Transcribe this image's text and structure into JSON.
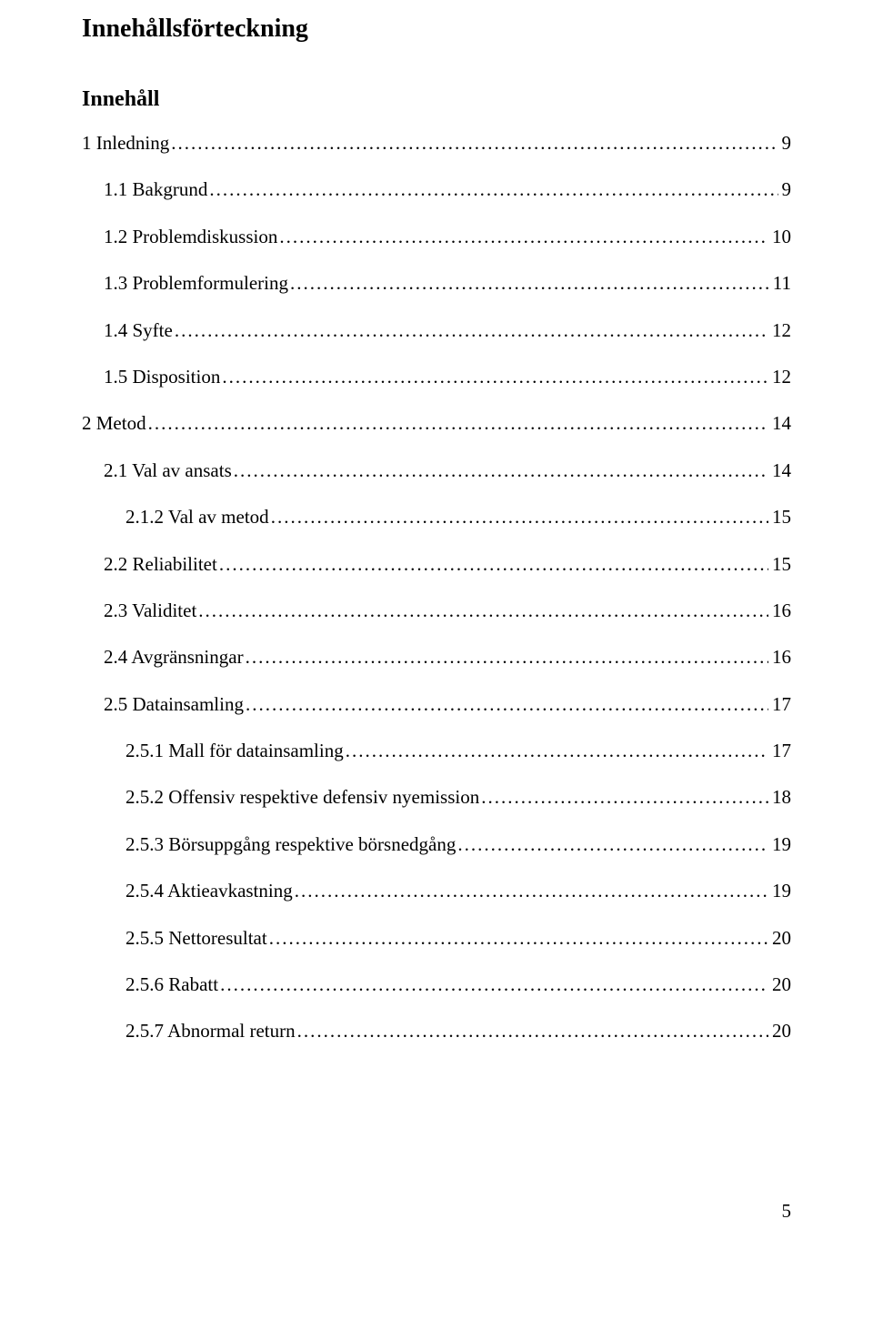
{
  "heading": "Innehållsförteckning",
  "subheading": "Innehåll",
  "leader_char": ".",
  "page_number": "5",
  "toc": [
    {
      "label": "1 Inledning",
      "page": "9",
      "indent": 0
    },
    {
      "label": "1.1 Bakgrund",
      "page": "9",
      "indent": 1
    },
    {
      "label": "1.2 Problemdiskussion",
      "page": "10",
      "indent": 1
    },
    {
      "label": "1.3 Problemformulering",
      "page": "11",
      "indent": 1
    },
    {
      "label": "1.4 Syfte",
      "page": "12",
      "indent": 1
    },
    {
      "label": "1.5 Disposition",
      "page": "12",
      "indent": 1
    },
    {
      "label": "2 Metod",
      "page": "14",
      "indent": 0
    },
    {
      "label": "2.1 Val av ansats",
      "page": "14",
      "indent": 1
    },
    {
      "label": "2.1.2 Val av metod",
      "page": "15",
      "indent": 2
    },
    {
      "label": "2.2 Reliabilitet",
      "page": "15",
      "indent": 1
    },
    {
      "label": "2.3 Validitet",
      "page": "16",
      "indent": 1
    },
    {
      "label": "2.4 Avgränsningar",
      "page": "16",
      "indent": 1
    },
    {
      "label": "2.5 Datainsamling",
      "page": "17",
      "indent": 1
    },
    {
      "label": "2.5.1 Mall för datainsamling",
      "page": "17",
      "indent": 2
    },
    {
      "label": "2.5.2 Offensiv respektive defensiv nyemission",
      "page": "18",
      "indent": 2
    },
    {
      "label": "2.5.3 Börsuppgång respektive börsnedgång",
      "page": "19",
      "indent": 2
    },
    {
      "label": "2.5.4 Aktieavkastning",
      "page": "19",
      "indent": 2
    },
    {
      "label": "2.5.5 Nettoresultat",
      "page": "20",
      "indent": 2
    },
    {
      "label": "2.5.6 Rabatt",
      "page": "20",
      "indent": 2
    },
    {
      "label": "2.5.7 Abnormal return",
      "page": "20",
      "indent": 2
    }
  ]
}
